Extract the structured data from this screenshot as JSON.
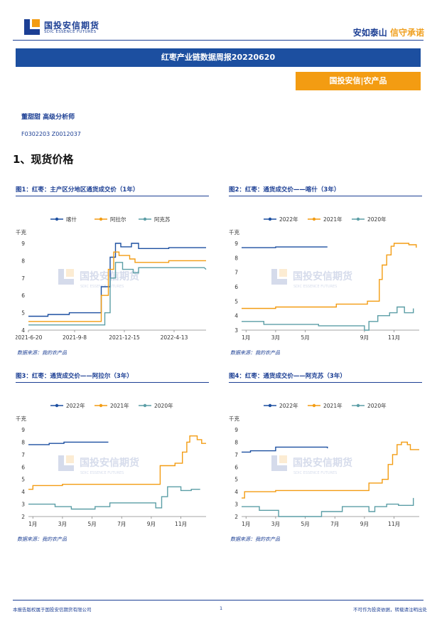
{
  "header": {
    "logo_cn": "国投安信期货",
    "logo_en": "SDIC ESSENCE FUTURES",
    "slogan_a": "安如泰山",
    "slogan_b": "信守承诺"
  },
  "banner_title": "红枣产业链数据周报20220620",
  "tag": "国投安信|农产品",
  "author": "董甜甜 高级分析师",
  "license": "F0302203 Z0012037",
  "section_title": "1、现货价格",
  "watermark_cn": "国投安信期货",
  "watermark_en": "SDIC ESSENCE FUTURES",
  "source_note": "数据来源：我的农产品",
  "footer": {
    "left": "本报告版权属于国投安信期货有限公司",
    "page": "1",
    "right": "不可作为投资依据，转载请注明出处"
  },
  "colors": {
    "blue": "#1c4fa0",
    "orange": "#f39c12",
    "teal": "#5b9ea6"
  },
  "chart_data": [
    {
      "title": "图1：红枣：主产区分地区通货成交价（1年）",
      "type": "line",
      "ylabel": "元/千克",
      "ylim": [
        4,
        9
      ],
      "yticks": [
        4,
        5,
        6,
        7,
        8,
        9
      ],
      "xlim": [
        0,
        100
      ],
      "xticks": [
        {
          "x": 0,
          "label": "2021-6-20"
        },
        {
          "x": 26,
          "label": "2021-9-8"
        },
        {
          "x": 54,
          "label": "2021-12-15"
        },
        {
          "x": 82,
          "label": "2022-4-13"
        }
      ],
      "series": [
        {
          "name": "喀什",
          "color": "#1c4fa0",
          "points": [
            [
              0,
              4.8
            ],
            [
              11,
              4.8
            ],
            [
              11,
              4.9
            ],
            [
              23,
              4.9
            ],
            [
              23,
              5.0
            ],
            [
              41,
              5.0
            ],
            [
              41,
              6.5
            ],
            [
              46,
              6.5
            ],
            [
              46,
              8.2
            ],
            [
              49,
              8.2
            ],
            [
              49,
              9.0
            ],
            [
              52,
              9.0
            ],
            [
              52,
              8.8
            ],
            [
              58,
              8.8
            ],
            [
              58,
              9.0
            ],
            [
              62,
              9.0
            ],
            [
              62,
              8.7
            ],
            [
              79,
              8.7
            ],
            [
              79,
              8.75
            ],
            [
              100,
              8.75
            ]
          ]
        },
        {
          "name": "阿拉尔",
          "color": "#f39c12",
          "points": [
            [
              0,
              4.5
            ],
            [
              41,
              4.5
            ],
            [
              41,
              6.0
            ],
            [
              45,
              6.0
            ],
            [
              45,
              7.5
            ],
            [
              48,
              7.5
            ],
            [
              48,
              8.5
            ],
            [
              51,
              8.5
            ],
            [
              51,
              8.3
            ],
            [
              57,
              8.3
            ],
            [
              57,
              8.1
            ],
            [
              60,
              8.1
            ],
            [
              60,
              7.9
            ],
            [
              79,
              7.9
            ],
            [
              79,
              8.0
            ],
            [
              100,
              8.0
            ]
          ]
        },
        {
          "name": "阿克苏",
          "color": "#5b9ea6",
          "points": [
            [
              0,
              4.3
            ],
            [
              43,
              4.3
            ],
            [
              43,
              5.0
            ],
            [
              46,
              5.0
            ],
            [
              46,
              7.0
            ],
            [
              49,
              7.0
            ],
            [
              49,
              7.9
            ],
            [
              53,
              7.9
            ],
            [
              53,
              7.5
            ],
            [
              59,
              7.5
            ],
            [
              59,
              7.3
            ],
            [
              62,
              7.3
            ],
            [
              62,
              7.6
            ],
            [
              99,
              7.6
            ],
            [
              100,
              7.5
            ]
          ]
        }
      ]
    },
    {
      "title": "图2：红枣：通货成交价——喀什（3年）",
      "type": "line",
      "ylabel": "元/千克",
      "ylim": [
        3,
        9
      ],
      "yticks": [
        3,
        4,
        5,
        6,
        7,
        8,
        9
      ],
      "xlim": [
        0,
        12
      ],
      "xticks": [
        {
          "x": 0.3,
          "label": "1月"
        },
        {
          "x": 2.3,
          "label": "3月"
        },
        {
          "x": 4.3,
          "label": "5月"
        },
        {
          "x": 8.3,
          "label": "9月"
        },
        {
          "x": 10.3,
          "label": "11月"
        }
      ],
      "series": [
        {
          "name": "2022年",
          "color": "#1c4fa0",
          "points": [
            [
              0,
              8.7
            ],
            [
              2.3,
              8.7
            ],
            [
              2.3,
              8.75
            ],
            [
              5.8,
              8.75
            ]
          ]
        },
        {
          "name": "2021年",
          "color": "#f39c12",
          "points": [
            [
              0,
              4.5
            ],
            [
              2.3,
              4.5
            ],
            [
              2.3,
              4.6
            ],
            [
              6.4,
              4.6
            ],
            [
              6.4,
              4.8
            ],
            [
              8.5,
              4.8
            ],
            [
              8.5,
              5.0
            ],
            [
              9.3,
              5.0
            ],
            [
              9.3,
              6.5
            ],
            [
              9.5,
              6.5
            ],
            [
              9.5,
              7.5
            ],
            [
              9.8,
              7.5
            ],
            [
              9.8,
              8.2
            ],
            [
              10.1,
              8.2
            ],
            [
              10.1,
              8.8
            ],
            [
              10.3,
              8.8
            ],
            [
              10.3,
              9.0
            ],
            [
              11.3,
              9.0
            ],
            [
              11.3,
              8.9
            ],
            [
              11.8,
              8.9
            ],
            [
              11.8,
              8.7
            ]
          ]
        },
        {
          "name": "2020年",
          "color": "#5b9ea6",
          "points": [
            [
              0,
              3.6
            ],
            [
              1.5,
              3.6
            ],
            [
              1.5,
              3.4
            ],
            [
              5.2,
              3.4
            ],
            [
              5.2,
              3.3
            ],
            [
              8.3,
              3.3
            ],
            [
              8.3,
              3.0
            ],
            [
              8.6,
              3.0
            ],
            [
              8.6,
              3.6
            ],
            [
              9.2,
              3.6
            ],
            [
              9.2,
              4.0
            ],
            [
              10.0,
              4.0
            ],
            [
              10.0,
              4.2
            ],
            [
              10.5,
              4.2
            ],
            [
              10.5,
              4.6
            ],
            [
              11.0,
              4.6
            ],
            [
              11.0,
              4.2
            ],
            [
              11.6,
              4.2
            ],
            [
              11.6,
              4.5
            ]
          ]
        }
      ]
    },
    {
      "title": "图3：红枣：通货成交价——阿拉尔（3年）",
      "type": "line",
      "ylabel": "元/千克",
      "ylim": [
        2,
        9
      ],
      "yticks": [
        2,
        3,
        4,
        5,
        6,
        7,
        8,
        9
      ],
      "xlim": [
        0,
        12
      ],
      "xticks": [
        {
          "x": 0.3,
          "label": "1月"
        },
        {
          "x": 2.3,
          "label": "3月"
        },
        {
          "x": 4.3,
          "label": "5月"
        },
        {
          "x": 6.3,
          "label": "7月"
        },
        {
          "x": 8.3,
          "label": "9月"
        },
        {
          "x": 10.3,
          "label": "11月"
        }
      ],
      "series": [
        {
          "name": "2022年",
          "color": "#1c4fa0",
          "points": [
            [
              0,
              7.8
            ],
            [
              1.4,
              7.8
            ],
            [
              1.4,
              7.9
            ],
            [
              2.4,
              7.9
            ],
            [
              2.4,
              8.0
            ],
            [
              5.4,
              8.0
            ]
          ]
        },
        {
          "name": "2021年",
          "color": "#f39c12",
          "points": [
            [
              0,
              4.2
            ],
            [
              0.3,
              4.2
            ],
            [
              0.3,
              4.5
            ],
            [
              2.3,
              4.5
            ],
            [
              2.3,
              4.6
            ],
            [
              8.9,
              4.6
            ],
            [
              8.9,
              6.1
            ],
            [
              9.9,
              6.1
            ],
            [
              9.9,
              6.3
            ],
            [
              10.4,
              6.3
            ],
            [
              10.4,
              7.2
            ],
            [
              10.7,
              7.2
            ],
            [
              10.7,
              8.0
            ],
            [
              10.9,
              8.0
            ],
            [
              10.9,
              8.5
            ],
            [
              11.4,
              8.5
            ],
            [
              11.4,
              8.2
            ],
            [
              11.7,
              8.2
            ],
            [
              11.7,
              7.9
            ],
            [
              12,
              7.9
            ]
          ]
        },
        {
          "name": "2020年",
          "color": "#5b9ea6",
          "points": [
            [
              0,
              3.0
            ],
            [
              1.8,
              3.0
            ],
            [
              1.8,
              2.8
            ],
            [
              2.9,
              2.8
            ],
            [
              2.9,
              2.6
            ],
            [
              4.5,
              2.6
            ],
            [
              4.5,
              2.8
            ],
            [
              5.5,
              2.8
            ],
            [
              5.5,
              3.1
            ],
            [
              8.6,
              3.1
            ],
            [
              8.6,
              2.7
            ],
            [
              9.0,
              2.7
            ],
            [
              9.0,
              3.6
            ],
            [
              9.4,
              3.6
            ],
            [
              9.4,
              4.4
            ],
            [
              10.3,
              4.4
            ],
            [
              10.3,
              4.1
            ],
            [
              11,
              4.1
            ],
            [
              11,
              4.2
            ],
            [
              11.6,
              4.2
            ]
          ]
        }
      ]
    },
    {
      "title": "图4：红枣：通货成交价——阿克苏（3年）",
      "type": "line",
      "ylabel": "元/千克",
      "ylim": [
        2,
        9
      ],
      "yticks": [
        2,
        3,
        4,
        5,
        6,
        7,
        8,
        9
      ],
      "xlim": [
        0,
        12
      ],
      "xticks": [
        {
          "x": 0.3,
          "label": "1月"
        },
        {
          "x": 2.3,
          "label": "3月"
        },
        {
          "x": 4.3,
          "label": "5月"
        },
        {
          "x": 6.3,
          "label": "7月"
        },
        {
          "x": 8.3,
          "label": "9月"
        },
        {
          "x": 10.3,
          "label": "11月"
        }
      ],
      "series": [
        {
          "name": "2022年",
          "color": "#1c4fa0",
          "points": [
            [
              0,
              7.2
            ],
            [
              0.6,
              7.2
            ],
            [
              0.6,
              7.3
            ],
            [
              2.3,
              7.3
            ],
            [
              2.3,
              7.6
            ],
            [
              5.8,
              7.6
            ],
            [
              5.8,
              7.5
            ]
          ]
        },
        {
          "name": "2021年",
          "color": "#f39c12",
          "points": [
            [
              0,
              3.5
            ],
            [
              0.2,
              3.5
            ],
            [
              0.2,
              4.0
            ],
            [
              2.3,
              4.0
            ],
            [
              2.3,
              4.1
            ],
            [
              8.6,
              4.1
            ],
            [
              8.6,
              4.7
            ],
            [
              9.5,
              4.7
            ],
            [
              9.5,
              5.0
            ],
            [
              9.9,
              5.0
            ],
            [
              9.9,
              6.2
            ],
            [
              10.2,
              6.2
            ],
            [
              10.2,
              7.0
            ],
            [
              10.5,
              7.0
            ],
            [
              10.5,
              7.8
            ],
            [
              10.8,
              7.8
            ],
            [
              10.8,
              8.0
            ],
            [
              11.2,
              8.0
            ],
            [
              11.2,
              7.8
            ],
            [
              11.4,
              7.8
            ],
            [
              11.4,
              7.4
            ],
            [
              12,
              7.4
            ]
          ]
        },
        {
          "name": "2020年",
          "color": "#5b9ea6",
          "points": [
            [
              0,
              2.8
            ],
            [
              1.2,
              2.8
            ],
            [
              1.2,
              2.5
            ],
            [
              2.5,
              2.5
            ],
            [
              2.5,
              2.0
            ],
            [
              5.4,
              2.0
            ],
            [
              5.4,
              2.4
            ],
            [
              6.8,
              2.4
            ],
            [
              6.8,
              2.8
            ],
            [
              8.6,
              2.8
            ],
            [
              8.6,
              2.4
            ],
            [
              9.0,
              2.4
            ],
            [
              9.0,
              2.8
            ],
            [
              9.8,
              2.8
            ],
            [
              9.8,
              3.0
            ],
            [
              10.6,
              3.0
            ],
            [
              10.6,
              2.9
            ],
            [
              11.6,
              2.9
            ],
            [
              11.6,
              3.5
            ]
          ]
        }
      ]
    }
  ]
}
